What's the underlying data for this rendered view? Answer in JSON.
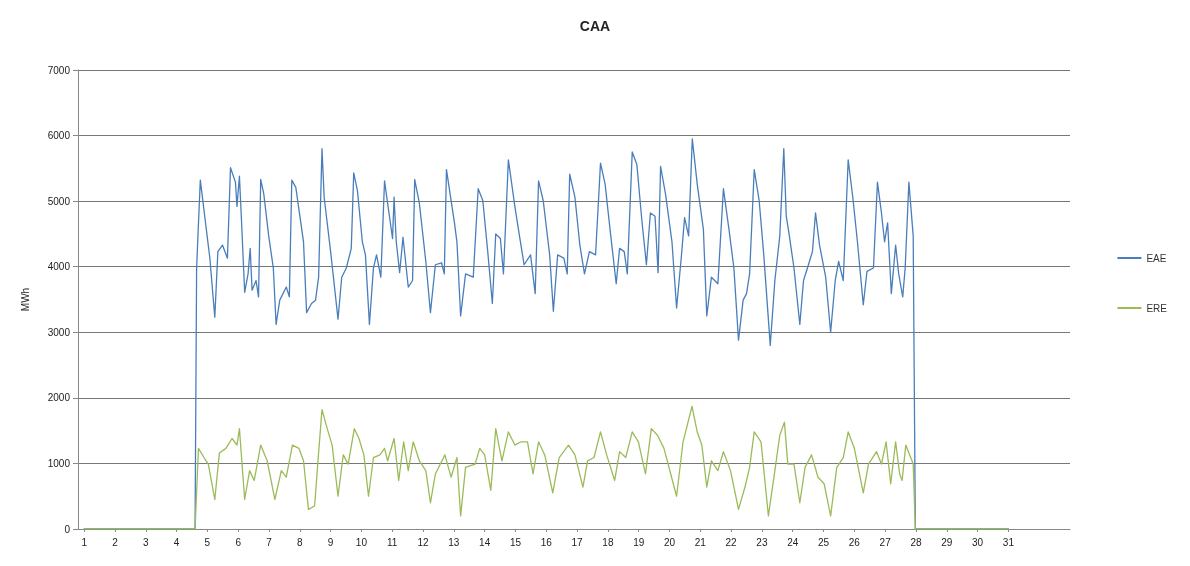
{
  "chart_data": {
    "type": "line",
    "title": "CAA",
    "ylabel": "MWh",
    "xlim": [
      0.8,
      33
    ],
    "xticks": [
      1,
      2,
      3,
      4,
      5,
      6,
      7,
      8,
      9,
      10,
      11,
      12,
      13,
      14,
      15,
      16,
      17,
      18,
      19,
      20,
      21,
      22,
      23,
      24,
      25,
      26,
      27,
      28,
      29,
      30,
      31
    ],
    "ylim": [
      0,
      7000
    ],
    "yticks": [
      0,
      1000,
      2000,
      3000,
      4000,
      5000,
      6000,
      7000
    ],
    "grid": "y",
    "legend": "right",
    "marker": "none",
    "line_style": "solid",
    "series": [
      {
        "name": "EAE",
        "color": "#4a7ebb",
        "x": [
          1,
          4.6,
          4.65,
          4.77,
          5.08,
          5.24,
          5.34,
          5.49,
          5.65,
          5.75,
          5.91,
          5.96,
          6.04,
          6.11,
          6.21,
          6.32,
          6.39,
          6.45,
          6.58,
          6.66,
          6.73,
          6.83,
          6.99,
          7.14,
          7.23,
          7.35,
          7.56,
          7.66,
          7.74,
          7.87,
          8.12,
          8.22,
          8.38,
          8.51,
          8.61,
          8.72,
          8.79,
          9.0,
          9.24,
          9.36,
          9.51,
          9.67,
          9.75,
          9.87,
          10.03,
          10.13,
          10.26,
          10.39,
          10.49,
          10.63,
          10.75,
          10.85,
          11.01,
          11.06,
          11.13,
          11.24,
          11.35,
          11.52,
          11.66,
          11.73,
          11.88,
          12.09,
          12.24,
          12.4,
          12.6,
          12.69,
          12.76,
          13.02,
          13.1,
          13.22,
          13.38,
          13.63,
          13.79,
          13.94,
          14.1,
          14.25,
          14.36,
          14.51,
          14.61,
          14.77,
          14.98,
          15.13,
          15.28,
          15.49,
          15.64,
          15.75,
          15.9,
          16.11,
          16.23,
          16.37,
          16.57,
          16.68,
          16.76,
          16.93,
          17.09,
          17.24,
          17.4,
          17.6,
          17.76,
          17.91,
          18.07,
          18.27,
          18.38,
          18.53,
          18.63,
          18.79,
          18.94,
          19.1,
          19.25,
          19.38,
          19.53,
          19.63,
          19.71,
          19.87,
          20.08,
          20.23,
          20.38,
          20.49,
          20.62,
          20.74,
          20.9,
          21.1,
          21.21,
          21.36,
          21.57,
          21.75,
          21.93,
          22.09,
          22.24,
          22.39,
          22.5,
          22.6,
          22.75,
          22.91,
          23.06,
          23.27,
          23.42,
          23.58,
          23.71,
          23.79,
          23.89,
          24.04,
          24.23,
          24.35,
          24.51,
          24.64,
          24.74,
          24.87,
          25.07,
          25.23,
          25.38,
          25.49,
          25.64,
          25.8,
          25.95,
          26.1,
          26.29,
          26.41,
          26.62,
          26.75,
          26.88,
          26.98,
          27.08,
          27.2,
          27.34,
          27.44,
          27.57,
          27.65,
          27.77,
          27.91,
          27.98,
          31
        ],
        "values": [
          0,
          0,
          3980,
          5320,
          4130,
          3230,
          4230,
          4330,
          4130,
          5510,
          5290,
          4920,
          5380,
          4670,
          3610,
          3890,
          4280,
          3640,
          3790,
          3540,
          5330,
          5110,
          4470,
          3980,
          3120,
          3490,
          3690,
          3540,
          5320,
          5210,
          4380,
          3300,
          3440,
          3490,
          3840,
          5800,
          5060,
          4230,
          3200,
          3840,
          3980,
          4280,
          5430,
          5160,
          4380,
          4180,
          3120,
          3980,
          4180,
          3840,
          5310,
          4970,
          4430,
          5060,
          4380,
          3910,
          4450,
          3690,
          3790,
          5330,
          4970,
          4080,
          3300,
          4030,
          4060,
          3890,
          5480,
          4670,
          4380,
          3250,
          3890,
          3840,
          5190,
          5010,
          4230,
          3440,
          4500,
          4430,
          3890,
          5630,
          4920,
          4470,
          4030,
          4180,
          3590,
          5310,
          5010,
          4180,
          3320,
          4180,
          4130,
          3890,
          5410,
          5060,
          4330,
          3890,
          4230,
          4180,
          5580,
          5260,
          4570,
          3740,
          4280,
          4230,
          3890,
          5750,
          5560,
          4720,
          4030,
          4820,
          4770,
          3910,
          5530,
          5110,
          4380,
          3370,
          4130,
          4750,
          4470,
          5950,
          5260,
          4570,
          3250,
          3840,
          3740,
          5190,
          4570,
          3980,
          2880,
          3490,
          3590,
          3890,
          5480,
          5010,
          4180,
          2800,
          3790,
          4470,
          5800,
          4770,
          4470,
          3980,
          3120,
          3790,
          4030,
          4230,
          4820,
          4330,
          3840,
          3000,
          3790,
          4080,
          3790,
          5630,
          5060,
          4380,
          3420,
          3930,
          3980,
          5290,
          4820,
          4380,
          4670,
          3590,
          4330,
          3890,
          3540,
          3980,
          5290,
          4470,
          0,
          0
        ]
      },
      {
        "name": "ERE",
        "color": "#9bbb59",
        "x": [
          1,
          4.6,
          4.71,
          4.89,
          5.03,
          5.24,
          5.39,
          5.6,
          5.8,
          5.96,
          6.04,
          6.21,
          6.37,
          6.52,
          6.73,
          6.94,
          7.19,
          7.4,
          7.56,
          7.76,
          7.97,
          8.12,
          8.28,
          8.48,
          8.59,
          8.72,
          8.89,
          9.05,
          9.24,
          9.41,
          9.57,
          9.77,
          9.92,
          10.08,
          10.23,
          10.39,
          10.6,
          10.75,
          10.85,
          11.06,
          11.21,
          11.37,
          11.52,
          11.68,
          11.88,
          12.09,
          12.24,
          12.4,
          12.71,
          12.91,
          13.1,
          13.22,
          13.38,
          13.69,
          13.84,
          14.0,
          14.2,
          14.36,
          14.56,
          14.77,
          14.98,
          15.18,
          15.39,
          15.57,
          15.75,
          15.95,
          16.21,
          16.42,
          16.72,
          16.93,
          17.19,
          17.34,
          17.55,
          17.76,
          17.96,
          18.22,
          18.38,
          18.58,
          18.79,
          18.99,
          19.22,
          19.41,
          19.61,
          19.82,
          20.23,
          20.44,
          20.73,
          20.9,
          21.05,
          21.21,
          21.36,
          21.57,
          21.75,
          21.98,
          22.24,
          22.45,
          22.6,
          22.75,
          22.97,
          23.21,
          23.42,
          23.58,
          23.73,
          23.84,
          24.04,
          24.23,
          24.4,
          24.61,
          24.82,
          25.02,
          25.23,
          25.43,
          25.64,
          25.8,
          26.0,
          26.29,
          26.46,
          26.72,
          26.88,
          27.03,
          27.18,
          27.34,
          27.47,
          27.55,
          27.67,
          27.91,
          27.98,
          31
        ],
        "values": [
          0,
          0,
          1230,
          1090,
          990,
          450,
          1160,
          1230,
          1380,
          1280,
          1530,
          450,
          890,
          740,
          1280,
          1040,
          450,
          890,
          790,
          1280,
          1230,
          1040,
          300,
          350,
          1040,
          1820,
          1530,
          1280,
          500,
          1130,
          990,
          1530,
          1380,
          1130,
          500,
          1090,
          1130,
          1230,
          1040,
          1380,
          740,
          1330,
          890,
          1330,
          1040,
          890,
          400,
          840,
          1130,
          790,
          1090,
          200,
          940,
          990,
          1230,
          1130,
          590,
          1530,
          1040,
          1480,
          1280,
          1330,
          1330,
          840,
          1330,
          1130,
          550,
          1090,
          1280,
          1130,
          640,
          1040,
          1090,
          1480,
          1130,
          740,
          1180,
          1090,
          1480,
          1330,
          840,
          1530,
          1430,
          1230,
          500,
          1330,
          1870,
          1480,
          1280,
          640,
          1040,
          890,
          1180,
          890,
          300,
          640,
          940,
          1480,
          1330,
          200,
          890,
          1430,
          1630,
          990,
          990,
          400,
          940,
          1130,
          790,
          690,
          200,
          940,
          1090,
          1480,
          1230,
          550,
          990,
          1180,
          990,
          1330,
          690,
          1330,
          840,
          740,
          1280,
          990,
          0,
          0
        ]
      }
    ]
  }
}
